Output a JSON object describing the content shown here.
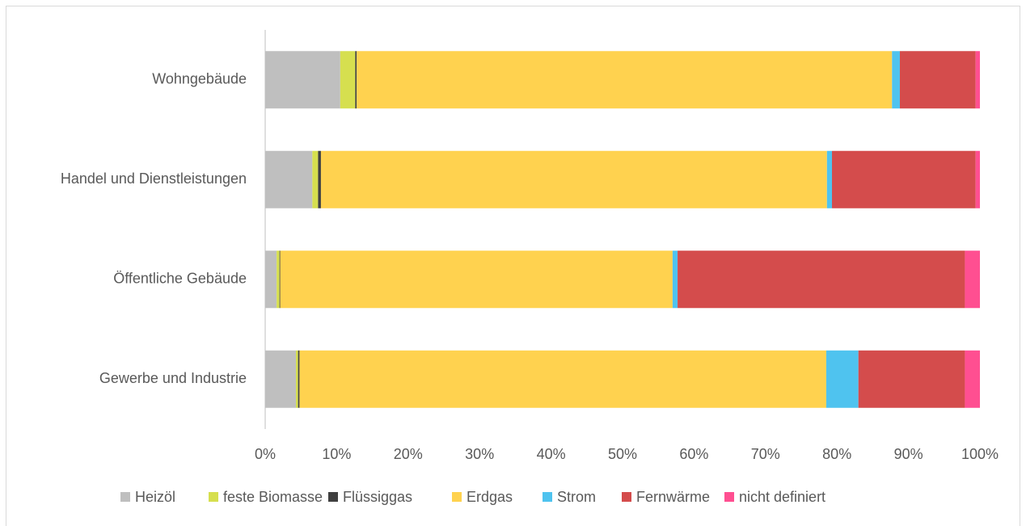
{
  "chart_data": {
    "type": "bar",
    "orientation": "horizontal",
    "stacked": true,
    "categories": [
      "Wohngebäude",
      "Handel und Dienstleistungen",
      "Öffentliche Gebäude",
      "Gewerbe und Industrie"
    ],
    "series": [
      {
        "name": "Heizöl",
        "color": "#bfbfbf",
        "values": [
          10.5,
          6.6,
          1.6,
          4.3
        ]
      },
      {
        "name": "feste Biomasse",
        "color": "#d6df4f",
        "values": [
          2.1,
          0.8,
          0.4,
          0.3
        ]
      },
      {
        "name": "Flüssiggas",
        "color": "#404040",
        "values": [
          0.2,
          0.4,
          0.1,
          0.2
        ]
      },
      {
        "name": "Erdgas",
        "color": "#ffd24f",
        "values": [
          74.9,
          70.8,
          54.9,
          73.7
        ]
      },
      {
        "name": "Strom",
        "color": "#4fc3ef",
        "values": [
          1.1,
          0.7,
          0.7,
          4.5
        ]
      },
      {
        "name": "Fernwärme",
        "color": "#d44c4c",
        "values": [
          10.6,
          20.1,
          40.2,
          14.9
        ]
      },
      {
        "name": "nicht definiert",
        "color": "#ff4f91",
        "values": [
          0.6,
          0.6,
          2.1,
          2.1
        ]
      }
    ],
    "xlim": [
      0,
      100
    ],
    "xticks": [
      {
        "value": 0,
        "label": "0%"
      },
      {
        "value": 10,
        "label": "10%"
      },
      {
        "value": 20,
        "label": "20%"
      },
      {
        "value": 30,
        "label": "30%"
      },
      {
        "value": 40,
        "label": "40%"
      },
      {
        "value": 50,
        "label": "50%"
      },
      {
        "value": 60,
        "label": "60%"
      },
      {
        "value": 70,
        "label": "70%"
      },
      {
        "value": 80,
        "label": "80%"
      },
      {
        "value": 90,
        "label": "90%"
      },
      {
        "value": 100,
        "label": "100%"
      }
    ],
    "grid": false,
    "legend": "bottom"
  }
}
